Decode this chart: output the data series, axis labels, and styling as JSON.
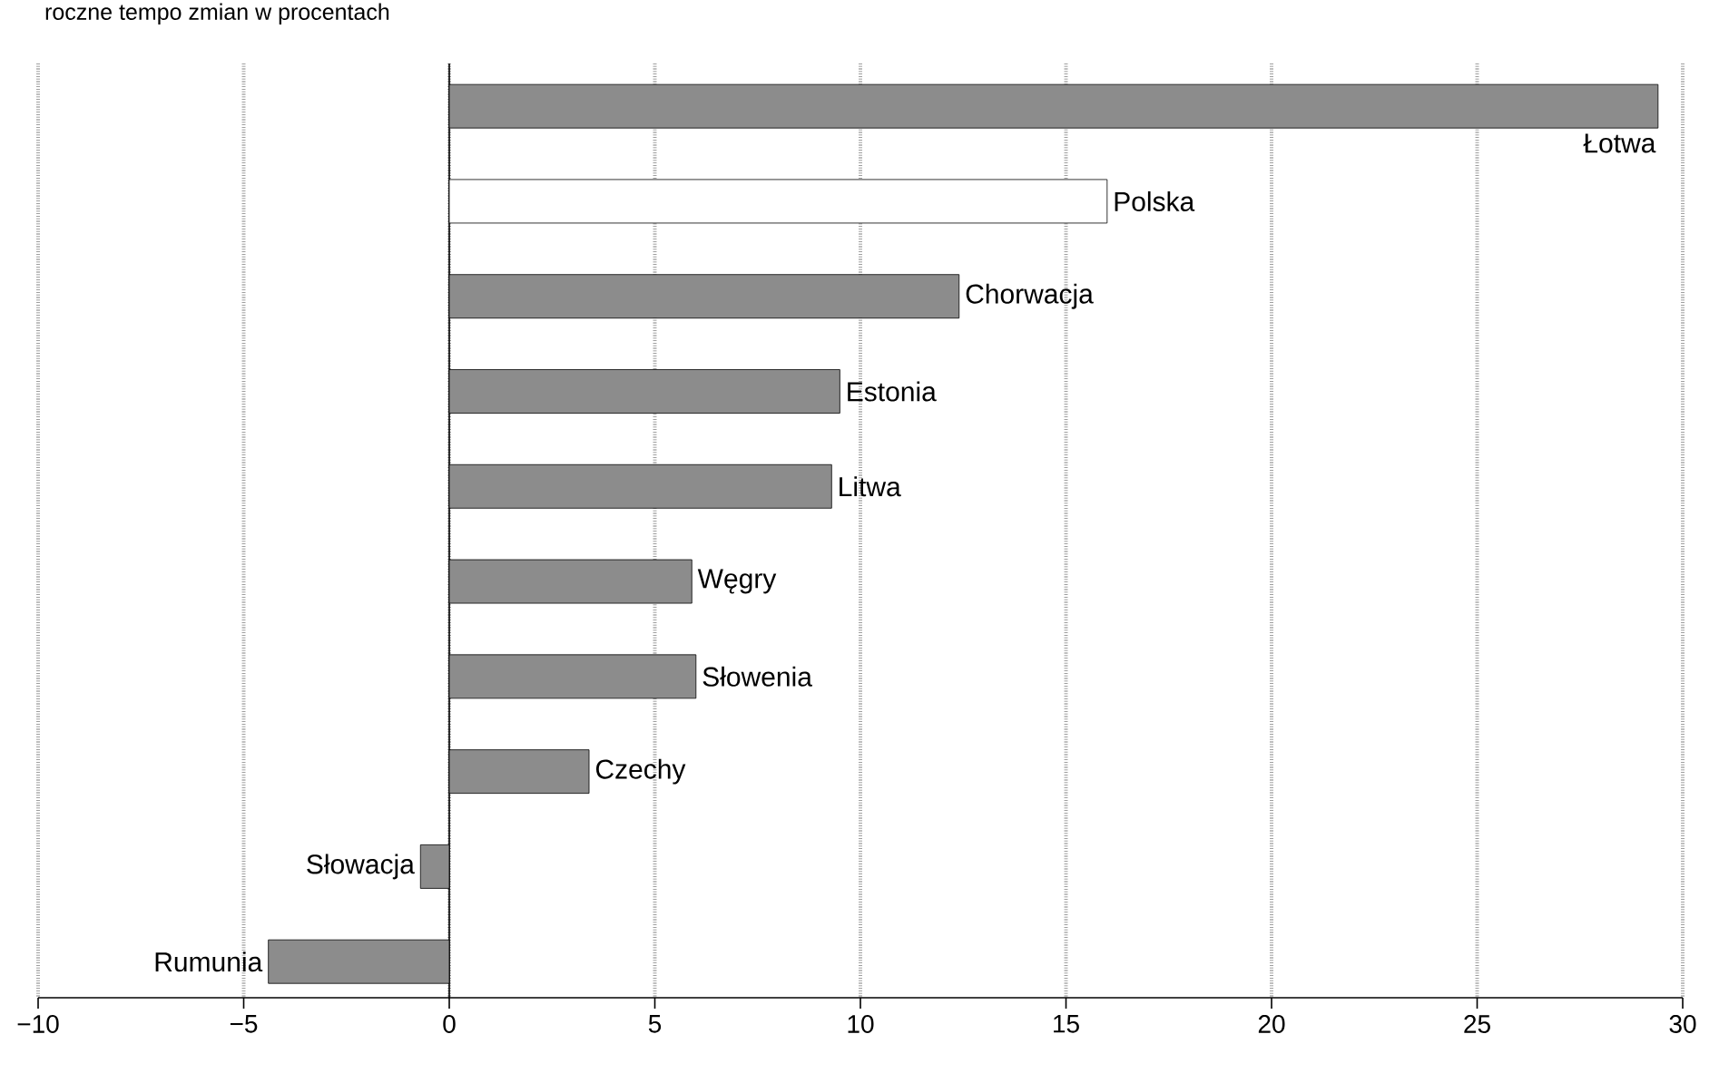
{
  "chart_data": {
    "type": "bar",
    "orientation": "horizontal",
    "title": "roczne tempo zmian w procentach",
    "categories": [
      "Łotwa",
      "Polska",
      "Chorwacja",
      "Estonia",
      "Litwa",
      "Węgry",
      "Słowenia",
      "Czechy",
      "Słowacja",
      "Rumunia"
    ],
    "values": [
      29.4,
      16.0,
      12.4,
      9.5,
      9.3,
      5.9,
      6.0,
      3.4,
      -0.7,
      -4.4
    ],
    "colors": [
      "#8c8c8c",
      "#ffffff",
      "#8c8c8c",
      "#8c8c8c",
      "#8c8c8c",
      "#8c8c8c",
      "#8c8c8c",
      "#8c8c8c",
      "#8c8c8c",
      "#8c8c8c"
    ],
    "xlim": [
      -10,
      30
    ],
    "xticks": [
      {
        "value": -10,
        "label": "−10"
      },
      {
        "value": -5,
        "label": "−5"
      },
      0,
      5,
      10,
      15,
      20,
      25,
      30
    ],
    "grid": "x"
  }
}
